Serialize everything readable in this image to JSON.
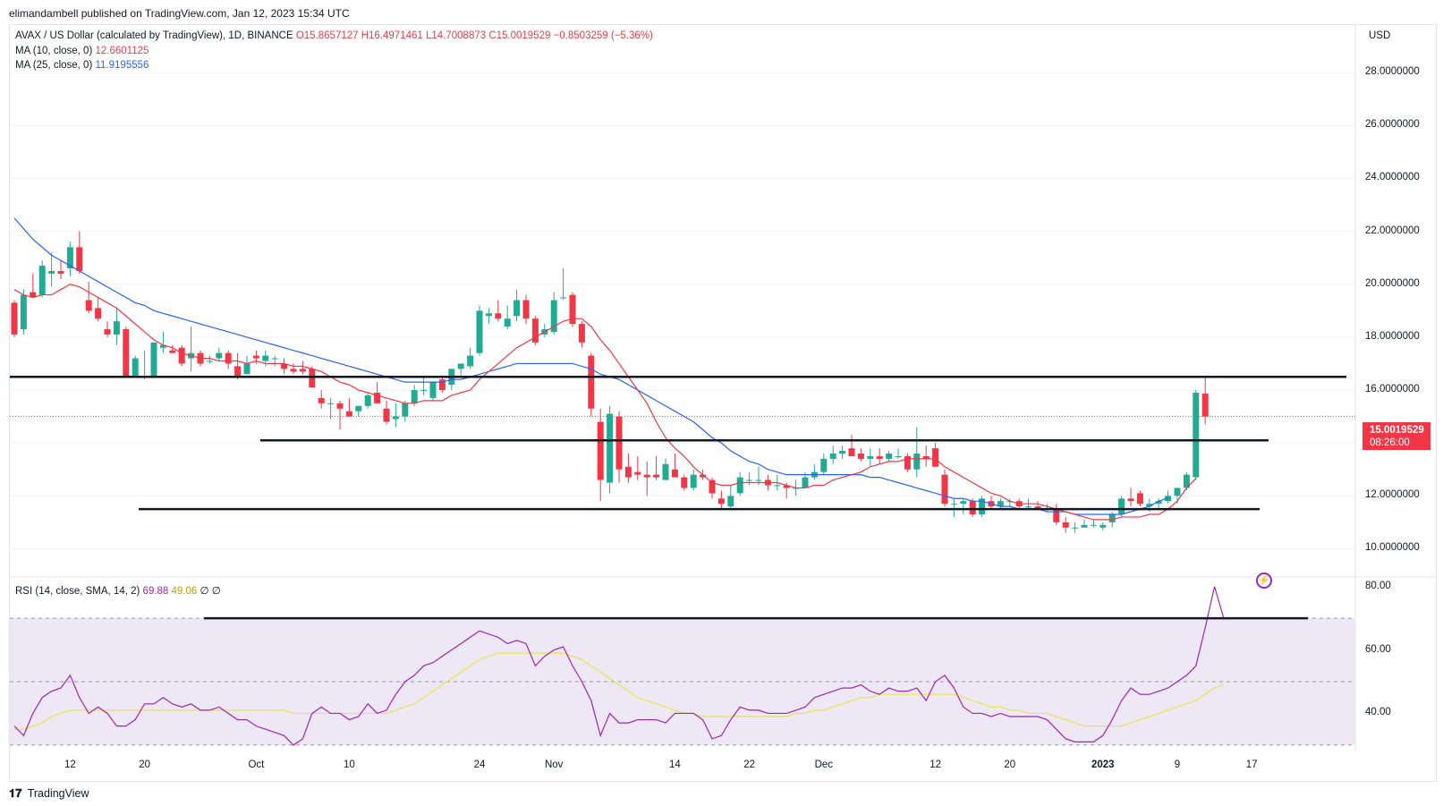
{
  "header": {
    "published": "elimandambell published on TradingView.com, Jan 12, 2023 15:34 UTC"
  },
  "legend": {
    "symbol": "AVAX / US Dollar (calculated by TradingView), 1D, BINANCE",
    "ohlc": "O15.8657127  H16.4971461  L14.7008873  C15.0019529  −0.8503259 (−5.36%)",
    "ma10_label": "MA (10, close, 0)",
    "ma10_value": "12.6601125",
    "ma25_label": "MA (25, close, 0)",
    "ma25_value": "11.9195556",
    "rsi_label": "RSI (14, close, SMA, 14, 2)",
    "rsi_value": "69.88",
    "rsi_sma_value": "49.06",
    "rsi_extra1": "∅",
    "rsi_extra2": "∅"
  },
  "axis": {
    "currency": "USD",
    "price_ticks": [
      "28.0000000",
      "26.0000000",
      "24.0000000",
      "22.0000000",
      "20.0000000",
      "18.0000000",
      "16.0000000",
      "14.0000000",
      "12.0000000",
      "10.0000000"
    ],
    "rsi_ticks": [
      "80.00",
      "60.00",
      "40.00"
    ],
    "x_ticks": [
      "12",
      "20",
      "Oct",
      "10",
      "24",
      "Nov",
      "14",
      "22",
      "Dec",
      "12",
      "20",
      "2023",
      "9",
      "17"
    ]
  },
  "price_tag": {
    "value": "15.0019529",
    "countdown": "08:26:00"
  },
  "footer": {
    "logo_mark": "𝟏𝟕",
    "logo_text": "TradingView"
  },
  "colors": {
    "up": "#22ab94",
    "down": "#f23645",
    "ma10": "#f23645",
    "ma25": "#2962ff",
    "rsi": "#9c27b0",
    "rsi_sma": "#e6e64a",
    "rsi_band": "#ede7f6"
  },
  "chart_data": {
    "type": "candlestick",
    "x_start": "2022-09-06",
    "candles_ohlc": [
      [
        19.3,
        19.4,
        18.0,
        18.1
      ],
      [
        18.3,
        19.8,
        18.1,
        19.6
      ],
      [
        19.7,
        20.4,
        19.5,
        19.5
      ],
      [
        19.6,
        20.9,
        19.5,
        20.7
      ],
      [
        20.4,
        21.2,
        19.9,
        20.5
      ],
      [
        20.5,
        20.9,
        20.2,
        20.4
      ],
      [
        20.6,
        21.6,
        20.3,
        21.4
      ],
      [
        21.4,
        22.0,
        20.4,
        20.5
      ],
      [
        19.4,
        20.1,
        18.9,
        19.0
      ],
      [
        19.1,
        19.5,
        18.6,
        18.7
      ],
      [
        18.3,
        18.6,
        18.0,
        18.1
      ],
      [
        18.1,
        19.1,
        17.7,
        18.6
      ],
      [
        18.3,
        18.4,
        16.7,
        16.5
      ],
      [
        16.5,
        17.3,
        16.6,
        17.2
      ],
      [
        16.5,
        17.5,
        16.4,
        16.5
      ],
      [
        16.5,
        17.8,
        16.5,
        17.8
      ],
      [
        17.6,
        18.2,
        17.4,
        17.7
      ],
      [
        17.5,
        17.7,
        17.4,
        17.4
      ],
      [
        17.6,
        17.7,
        16.9,
        17.0
      ],
      [
        17.2,
        18.4,
        16.7,
        17.4
      ],
      [
        17.4,
        17.5,
        16.9,
        17.0
      ],
      [
        17.1,
        17.3,
        17.0,
        17.1
      ],
      [
        17.2,
        17.6,
        17.1,
        17.4
      ],
      [
        17.4,
        17.5,
        16.8,
        17.0
      ],
      [
        16.9,
        17.4,
        16.4,
        16.5
      ],
      [
        16.6,
        17.3,
        16.6,
        17.0
      ],
      [
        17.3,
        17.5,
        17.0,
        17.2
      ],
      [
        17.1,
        17.5,
        16.9,
        17.3
      ],
      [
        17.2,
        17.3,
        16.9,
        17.2
      ],
      [
        17.0,
        17.2,
        16.6,
        16.8
      ],
      [
        16.8,
        17.0,
        16.6,
        16.7
      ],
      [
        16.8,
        17.1,
        16.6,
        16.7
      ],
      [
        16.8,
        16.9,
        16.1,
        16.1
      ],
      [
        15.7,
        16.0,
        15.3,
        15.5
      ],
      [
        15.5,
        15.7,
        14.9,
        15.5
      ],
      [
        15.5,
        15.6,
        14.5,
        15.3
      ],
      [
        15.2,
        15.7,
        15.0,
        15.0
      ],
      [
        15.2,
        15.4,
        15.0,
        15.4
      ],
      [
        15.4,
        15.9,
        15.3,
        15.8
      ],
      [
        15.9,
        16.3,
        15.5,
        15.5
      ],
      [
        15.3,
        15.6,
        14.7,
        14.8
      ],
      [
        14.9,
        15.5,
        14.6,
        15.0
      ],
      [
        15.0,
        15.6,
        14.8,
        15.5
      ],
      [
        15.5,
        16.2,
        15.4,
        16.0
      ],
      [
        16.0,
        16.5,
        15.8,
        16.0
      ],
      [
        15.7,
        16.3,
        15.6,
        16.3
      ],
      [
        16.4,
        16.5,
        15.9,
        16.0
      ],
      [
        16.2,
        16.8,
        16.0,
        16.8
      ],
      [
        16.8,
        17.0,
        16.5,
        17.0
      ],
      [
        16.9,
        17.6,
        16.8,
        17.3
      ],
      [
        17.4,
        19.2,
        17.3,
        19.0
      ],
      [
        18.8,
        19.1,
        18.5,
        18.9
      ],
      [
        18.9,
        19.4,
        18.6,
        18.7
      ],
      [
        18.4,
        19.2,
        18.3,
        18.7
      ],
      [
        18.8,
        19.8,
        18.6,
        19.4
      ],
      [
        19.4,
        19.6,
        18.5,
        18.7
      ],
      [
        18.7,
        18.8,
        17.7,
        17.8
      ],
      [
        18.1,
        18.5,
        18.0,
        18.3
      ],
      [
        18.2,
        19.7,
        18.1,
        19.4
      ],
      [
        19.5,
        20.6,
        19.4,
        19.5
      ],
      [
        19.6,
        19.7,
        18.4,
        18.5
      ],
      [
        18.5,
        18.6,
        17.6,
        17.8
      ],
      [
        17.3,
        17.4,
        15.0,
        15.3
      ],
      [
        14.8,
        15.3,
        11.8,
        12.6
      ],
      [
        12.5,
        15.4,
        12.1,
        15.1
      ],
      [
        15.0,
        15.2,
        12.5,
        13.0
      ],
      [
        13.1,
        13.6,
        12.5,
        12.7
      ],
      [
        12.9,
        13.5,
        12.6,
        12.8
      ],
      [
        12.8,
        13.3,
        12.0,
        12.7
      ],
      [
        12.8,
        13.5,
        12.6,
        12.7
      ],
      [
        12.6,
        13.4,
        12.6,
        13.2
      ],
      [
        13.0,
        13.6,
        12.9,
        12.7
      ],
      [
        12.7,
        12.8,
        12.2,
        12.3
      ],
      [
        12.3,
        13.0,
        12.2,
        12.8
      ],
      [
        12.8,
        13.0,
        12.6,
        12.7
      ],
      [
        12.6,
        12.7,
        11.9,
        12.1
      ],
      [
        11.9,
        12.2,
        11.5,
        11.7
      ],
      [
        11.6,
        12.4,
        11.5,
        12.0
      ],
      [
        12.1,
        12.9,
        12.0,
        12.7
      ],
      [
        12.6,
        12.9,
        12.4,
        12.6
      ],
      [
        12.6,
        13.1,
        12.4,
        12.6
      ],
      [
        12.6,
        12.8,
        12.2,
        12.4
      ],
      [
        12.4,
        12.8,
        12.2,
        12.4
      ],
      [
        12.4,
        12.5,
        11.9,
        12.3
      ],
      [
        12.3,
        12.6,
        12.0,
        12.3
      ],
      [
        12.3,
        12.9,
        12.3,
        12.7
      ],
      [
        12.7,
        13.2,
        12.6,
        12.9
      ],
      [
        12.9,
        13.6,
        12.8,
        13.4
      ],
      [
        13.4,
        13.9,
        13.2,
        13.6
      ],
      [
        13.6,
        13.9,
        13.4,
        13.7
      ],
      [
        13.8,
        14.3,
        13.6,
        13.5
      ],
      [
        13.6,
        13.8,
        13.3,
        13.4
      ],
      [
        13.4,
        13.8,
        13.1,
        13.5
      ],
      [
        13.5,
        13.8,
        13.2,
        13.4
      ],
      [
        13.4,
        13.7,
        13.3,
        13.6
      ],
      [
        13.5,
        13.8,
        13.4,
        13.5
      ],
      [
        13.5,
        13.6,
        12.9,
        13.0
      ],
      [
        13.0,
        14.6,
        12.7,
        13.6
      ],
      [
        13.5,
        13.9,
        13.1,
        13.4
      ],
      [
        13.8,
        14.0,
        13.3,
        13.1
      ],
      [
        12.8,
        13.0,
        11.6,
        11.7
      ],
      [
        11.7,
        11.9,
        11.2,
        11.7
      ],
      [
        11.7,
        11.9,
        11.3,
        11.8
      ],
      [
        11.8,
        11.9,
        11.2,
        11.3
      ],
      [
        11.3,
        12.0,
        11.2,
        11.9
      ],
      [
        11.8,
        12.0,
        11.5,
        11.6
      ],
      [
        11.6,
        11.9,
        11.5,
        11.8
      ],
      [
        11.8,
        11.9,
        11.6,
        11.8
      ],
      [
        11.8,
        11.9,
        11.5,
        11.6
      ],
      [
        11.6,
        11.9,
        11.5,
        11.6
      ],
      [
        11.6,
        11.8,
        11.5,
        11.5
      ],
      [
        11.5,
        11.7,
        11.4,
        11.5
      ],
      [
        11.5,
        11.7,
        10.9,
        11.0
      ],
      [
        11.0,
        11.2,
        10.6,
        10.8
      ],
      [
        10.8,
        11.0,
        10.6,
        10.8
      ],
      [
        10.8,
        11.1,
        10.8,
        10.9
      ],
      [
        10.9,
        11.1,
        10.8,
        10.9
      ],
      [
        10.8,
        11.0,
        10.7,
        10.9
      ],
      [
        11.0,
        11.4,
        10.8,
        11.3
      ],
      [
        11.3,
        12.0,
        11.2,
        11.9
      ],
      [
        11.9,
        12.3,
        11.6,
        11.8
      ],
      [
        12.1,
        12.2,
        11.6,
        11.7
      ],
      [
        11.6,
        11.9,
        11.4,
        11.7
      ],
      [
        11.7,
        11.9,
        11.5,
        11.8
      ],
      [
        11.8,
        12.2,
        11.7,
        12.0
      ],
      [
        12.0,
        12.3,
        11.7,
        12.3
      ],
      [
        12.3,
        12.9,
        12.2,
        12.8
      ],
      [
        12.7,
        16.0,
        12.6,
        15.9
      ],
      [
        15.87,
        16.5,
        14.7,
        15.0
      ]
    ],
    "ma10": [
      19.8,
      19.6,
      19.5,
      19.6,
      19.6,
      19.8,
      20.0,
      19.9,
      19.7,
      19.5,
      19.3,
      19.1,
      18.8,
      18.5,
      18.2,
      17.9,
      17.7,
      17.6,
      17.4,
      17.3,
      17.2,
      17.2,
      17.1,
      17.1,
      17.1,
      17.0,
      17.1,
      17.0,
      17.0,
      17.0,
      16.9,
      16.9,
      16.8,
      16.7,
      16.5,
      16.3,
      16.2,
      16.0,
      15.9,
      15.8,
      15.7,
      15.6,
      15.5,
      15.5,
      15.6,
      15.6,
      15.6,
      15.8,
      15.9,
      16.0,
      16.4,
      16.7,
      17.0,
      17.3,
      17.6,
      17.8,
      18.0,
      18.2,
      18.4,
      18.6,
      18.7,
      18.7,
      18.4,
      17.9,
      17.5,
      17.0,
      16.5,
      16.0,
      15.5,
      14.8,
      14.2,
      13.8,
      13.5,
      13.1,
      12.8,
      12.5,
      12.4,
      12.4,
      12.5,
      12.5,
      12.5,
      12.5,
      12.5,
      12.4,
      12.3,
      12.3,
      12.4,
      12.4,
      12.6,
      12.7,
      12.8,
      12.9,
      13.1,
      13.2,
      13.3,
      13.3,
      13.4,
      13.4,
      13.4,
      13.4,
      13.1,
      12.9,
      12.7,
      12.5,
      12.3,
      12.1,
      12.0,
      11.8,
      11.7,
      11.7,
      11.7,
      11.6,
      11.5,
      11.4,
      11.3,
      11.2,
      11.1,
      11.1,
      11.1,
      11.2,
      11.2,
      11.2,
      11.3,
      11.3,
      11.5,
      11.8,
      12.3,
      12.66
    ],
    "ma25": [
      22.5,
      22.1,
      21.7,
      21.4,
      21.1,
      20.9,
      20.7,
      20.5,
      20.3,
      20.1,
      19.9,
      19.7,
      19.5,
      19.3,
      19.2,
      19.0,
      18.9,
      18.8,
      18.7,
      18.6,
      18.5,
      18.4,
      18.3,
      18.2,
      18.1,
      18.0,
      17.9,
      17.8,
      17.7,
      17.6,
      17.5,
      17.4,
      17.3,
      17.2,
      17.1,
      17.0,
      16.9,
      16.8,
      16.7,
      16.6,
      16.5,
      16.4,
      16.3,
      16.3,
      16.3,
      16.3,
      16.3,
      16.4,
      16.4,
      16.5,
      16.6,
      16.7,
      16.8,
      16.9,
      17.0,
      17.0,
      17.0,
      17.0,
      17.0,
      17.0,
      17.0,
      16.9,
      16.8,
      16.6,
      16.5,
      16.4,
      16.2,
      16.0,
      15.8,
      15.6,
      15.4,
      15.2,
      15.0,
      14.8,
      14.5,
      14.2,
      14.0,
      13.7,
      13.5,
      13.3,
      13.2,
      13.0,
      12.9,
      12.8,
      12.8,
      12.8,
      12.8,
      12.8,
      12.8,
      12.8,
      12.8,
      12.8,
      12.7,
      12.7,
      12.6,
      12.5,
      12.4,
      12.3,
      12.2,
      12.1,
      12.0,
      11.9,
      11.9,
      11.8,
      11.8,
      11.7,
      11.6,
      11.6,
      11.5,
      11.5,
      11.5,
      11.4,
      11.4,
      11.4,
      11.3,
      11.3,
      11.3,
      11.3,
      11.3,
      11.3,
      11.4,
      11.5,
      11.6,
      11.8,
      11.92
    ],
    "rsi": [
      36,
      33,
      40,
      45,
      47,
      48,
      52,
      45,
      40,
      42,
      40,
      36,
      36,
      38,
      43,
      43,
      45,
      43,
      42,
      43,
      41,
      41,
      42,
      40,
      38,
      38,
      36,
      35,
      34,
      33,
      30,
      32,
      40,
      42,
      40,
      40,
      38,
      39,
      43,
      40,
      41,
      46,
      50,
      52,
      55,
      56,
      58,
      60,
      62,
      64,
      66,
      65,
      64,
      62,
      63,
      62,
      55,
      58,
      60,
      61,
      55,
      50,
      44,
      33,
      40,
      37,
      37,
      38,
      38,
      38,
      37,
      40,
      40,
      40,
      38,
      32,
      33,
      38,
      42,
      41,
      41,
      40,
      40,
      40,
      41,
      42,
      45,
      46,
      47,
      48,
      48,
      49,
      47,
      46,
      48,
      47,
      47,
      48,
      44,
      50,
      52,
      48,
      42,
      40,
      40,
      39,
      40,
      39,
      39,
      39,
      39,
      38,
      35,
      32,
      31,
      31,
      31,
      33,
      38,
      44,
      48,
      46,
      46,
      47,
      48,
      50,
      52,
      55,
      67,
      80,
      69.88
    ],
    "rsi_sma": [
      35,
      35,
      36,
      37,
      39,
      40,
      41,
      41,
      41,
      41,
      41,
      41,
      41,
      41,
      41,
      41,
      41,
      41,
      41,
      41,
      41,
      41,
      41,
      41,
      41,
      41,
      41,
      41,
      41,
      41,
      40,
      40,
      40,
      40,
      40,
      40,
      40,
      40,
      40,
      40,
      40,
      41,
      42,
      43,
      45,
      47,
      49,
      51,
      53,
      55,
      57,
      58,
      59,
      59,
      59,
      59,
      59,
      59,
      59,
      59,
      58,
      57,
      55,
      53,
      51,
      49,
      47,
      45,
      44,
      43,
      42,
      41,
      40,
      40,
      39,
      39,
      39,
      39,
      39,
      39,
      39,
      39,
      39,
      39,
      40,
      40,
      41,
      41,
      42,
      43,
      44,
      45,
      45,
      46,
      46,
      46,
      46,
      46,
      46,
      46,
      46,
      46,
      45,
      44,
      43,
      42,
      42,
      41,
      41,
      40,
      40,
      40,
      39,
      38,
      37,
      36,
      36,
      36,
      36,
      36,
      37,
      38,
      39,
      40,
      41,
      42,
      43,
      44,
      46,
      48,
      49.06
    ],
    "levels": [
      16.5,
      14.1,
      11.5
    ],
    "price_range": [
      9.0,
      29.8
    ],
    "rsi_range": [
      28,
      83
    ],
    "rsi_bands": [
      70,
      50,
      30
    ]
  }
}
